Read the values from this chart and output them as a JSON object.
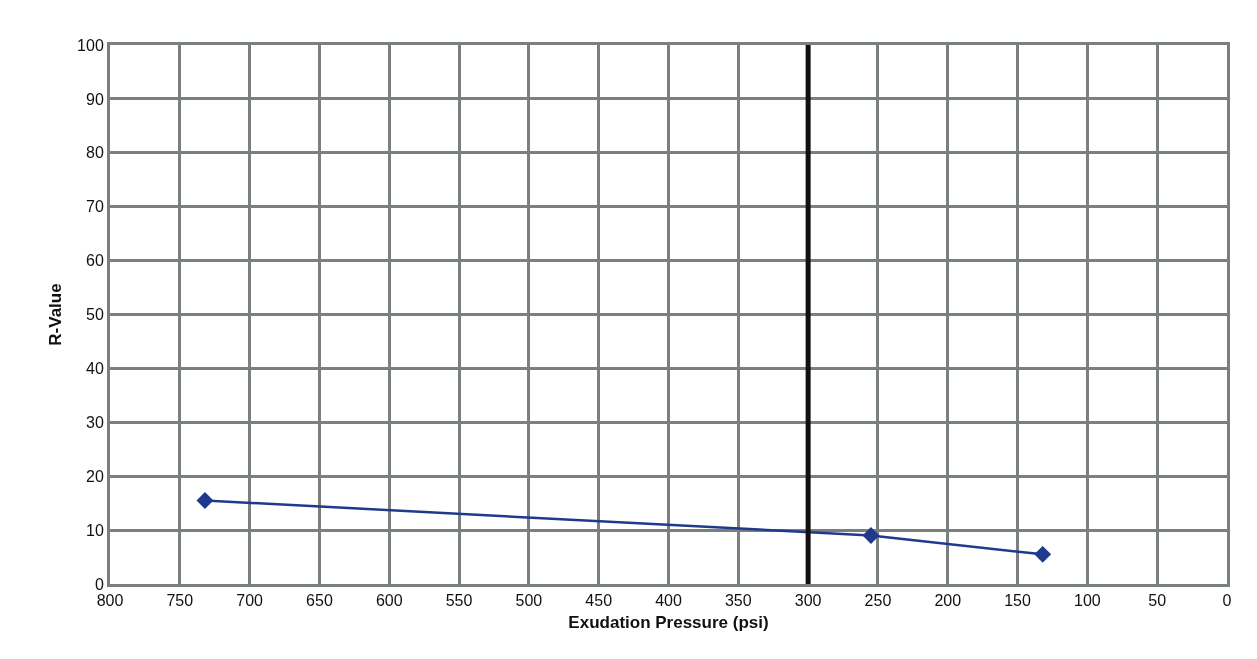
{
  "chart_data": {
    "type": "line",
    "xlabel": "Exudation Pressure (psi)",
    "ylabel": "R-Value",
    "x": [
      732,
      255,
      132
    ],
    "series": [
      {
        "color": "#1f3a8c",
        "values": [
          15.5,
          9,
          5.5
        ]
      }
    ],
    "xlim": [
      800,
      0
    ],
    "xticks": [
      800,
      750,
      700,
      650,
      600,
      550,
      500,
      450,
      400,
      350,
      300,
      250,
      200,
      150,
      100,
      50,
      0
    ],
    "ylim": [
      0,
      100
    ],
    "yticks": [
      0,
      10,
      20,
      30,
      40,
      50,
      60,
      70,
      80,
      90,
      100
    ],
    "grid": true,
    "legend": false,
    "marker": "diamond",
    "line_style": "solid",
    "ref_lines": [
      {
        "axis": "x",
        "value": 300,
        "color": "#111111"
      }
    ]
  }
}
